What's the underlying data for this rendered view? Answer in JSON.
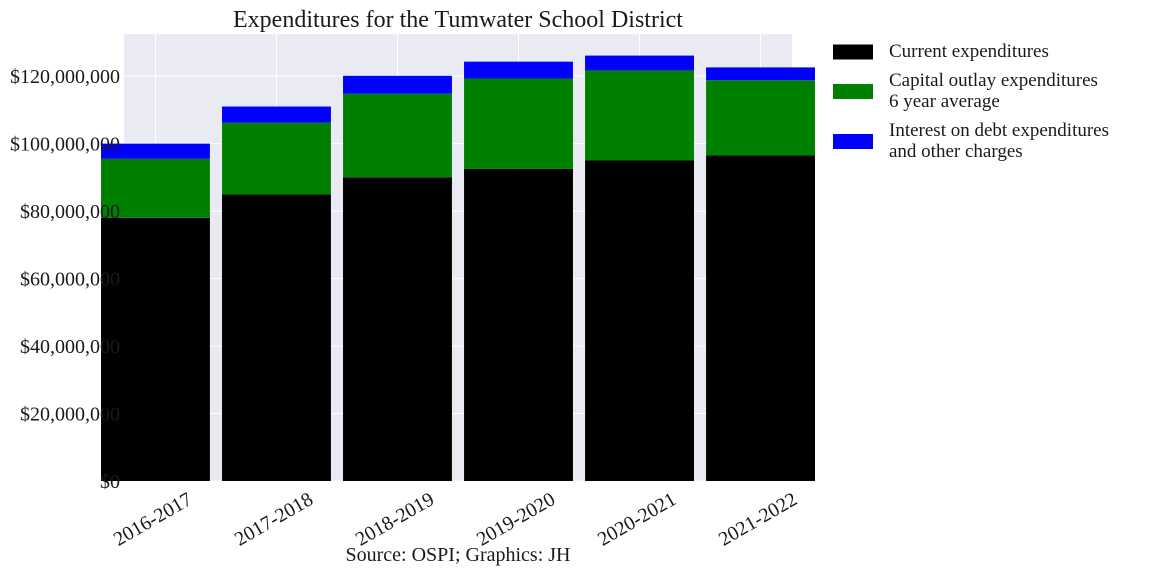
{
  "chart_data": {
    "type": "bar",
    "stacked": true,
    "title": "Expenditures for the Tumwater School District",
    "xlabel": "",
    "ylabel": "",
    "caption": "Source: OSPI; Graphics: JH",
    "categories": [
      "2016-2017",
      "2017-2018",
      "2018-2019",
      "2019-2020",
      "2020-2021",
      "2021-2022"
    ],
    "series": [
      {
        "name": "Current expenditures",
        "color": "#000000",
        "values": [
          78000000,
          85000000,
          90000000,
          92500000,
          95000000,
          96500000
        ]
      },
      {
        "name": "Capital outlay expenditures\n6 year average",
        "color": "#008000",
        "values": [
          17500000,
          21200000,
          24800000,
          26800000,
          26700000,
          22300000
        ]
      },
      {
        "name": "Interest on debt expenditures\nand other charges",
        "color": "#0000ff",
        "values": [
          4500000,
          4800000,
          5300000,
          5000000,
          4400000,
          3800000
        ]
      }
    ],
    "ylim": [
      0,
      132500000
    ],
    "yticks": [
      0,
      20000000,
      40000000,
      60000000,
      80000000,
      100000000,
      120000000
    ],
    "ytick_labels": [
      "$0",
      "$20,000,000",
      "$40,000,000",
      "$60,000,000",
      "$80,000,000",
      "$100,000,000",
      "$120,000,000"
    ],
    "grid": true,
    "legend_position": "outside-right-top",
    "plot_background": "#eaeaf2"
  }
}
